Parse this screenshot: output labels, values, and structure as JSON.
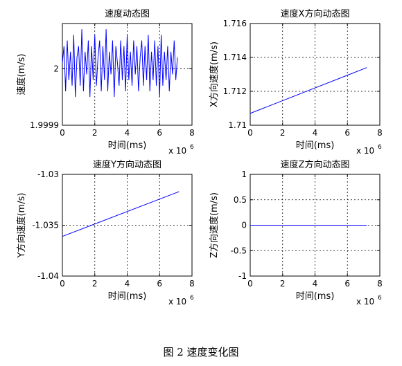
{
  "caption": "图 2 速度变化图",
  "chart_data": [
    {
      "type": "line",
      "title": "速度动态图",
      "xlabel": "时间(ms)",
      "ylabel": "速度(m/s)",
      "x_exponent": "x 10",
      "x_exponent_power": "6",
      "xlim": [
        0,
        8
      ],
      "ylim": [
        1.9999,
        2.00008
      ],
      "xticks": [
        0,
        2,
        4,
        6,
        8
      ],
      "xtick_labels": [
        "0",
        "2",
        "4",
        "6",
        "8"
      ],
      "yticks": [
        1.9999,
        2.0
      ],
      "ytick_labels": [
        "1.9999",
        "2"
      ],
      "grid": true,
      "color": "#0000ff",
      "series": [
        {
          "x": [
            0.0,
            0.1,
            0.2,
            0.3,
            0.4,
            0.5,
            0.6,
            0.7,
            0.8,
            0.9,
            1.0,
            1.1,
            1.2,
            1.3,
            1.4,
            1.5,
            1.6,
            1.7,
            1.8,
            1.9,
            2.0,
            2.1,
            2.2,
            2.3,
            2.4,
            2.5,
            2.6,
            2.7,
            2.8,
            2.9,
            3.0,
            3.1,
            3.2,
            3.3,
            3.4,
            3.5,
            3.6,
            3.7,
            3.8,
            3.9,
            4.0,
            4.1,
            4.2,
            4.3,
            4.4,
            4.5,
            4.6,
            4.7,
            4.8,
            4.9,
            5.0,
            5.1,
            5.2,
            5.3,
            5.4,
            5.5,
            5.6,
            5.7,
            5.8,
            5.9,
            6.0,
            6.1,
            6.2,
            6.3,
            6.4,
            6.5,
            6.6,
            6.7,
            6.8,
            6.9,
            7.0,
            7.1
          ],
          "y": [
            2.00001,
            2.00004,
            1.99996,
            2.00005,
            1.99998,
            2.00003,
            1.99997,
            2.00006,
            1.99995,
            2.00002,
            2.00004,
            1.99997,
            2.00007,
            1.99996,
            2.00003,
            1.99999,
            2.00005,
            1.99995,
            2.00004,
            1.99998,
            2.00006,
            1.99997,
            2.00002,
            2.00005,
            1.99996,
            2.00004,
            1.99998,
            2.00007,
            1.99996,
            2.00003,
            1.99999,
            2.00005,
            1.99995,
            2.00004,
            2.00001,
            1.99997,
            2.00005,
            1.99998,
            2.00004,
            1.99996,
            2.00006,
            1.99998,
            2.00003,
            1.99997,
            2.00005,
            1.99999,
            2.00004,
            1.99996,
            2.00002,
            2.00005,
            1.99997,
            2.00004,
            1.99998,
            2.00006,
            1.99996,
            2.00003,
            1.99998,
            2.00005,
            1.99997,
            2.00004,
            1.99995,
            2.00006,
            1.99997,
            2.00003,
            1.99998,
            2.00004,
            1.99996,
            2.00003,
            1.99999,
            2.00005,
            1.99998,
            2.00002
          ]
        }
      ]
    },
    {
      "type": "line",
      "title": "速度X方向动态图",
      "xlabel": "时间(ms)",
      "ylabel": "X方向速度(m/s)",
      "x_exponent": "x 10",
      "x_exponent_power": "6",
      "xlim": [
        0,
        8
      ],
      "ylim": [
        1.71,
        1.716
      ],
      "xticks": [
        0,
        2,
        4,
        6,
        8
      ],
      "xtick_labels": [
        "0",
        "2",
        "4",
        "6",
        "8"
      ],
      "yticks": [
        1.71,
        1.712,
        1.714,
        1.716
      ],
      "ytick_labels": [
        "1.71",
        "1.712",
        "1.714",
        "1.716"
      ],
      "grid": true,
      "color": "#0000ff",
      "series": [
        {
          "x": [
            0,
            7.2
          ],
          "y": [
            1.7107,
            1.7134
          ]
        }
      ]
    },
    {
      "type": "line",
      "title": "速度Y方向动态图",
      "xlabel": "时间(ms)",
      "ylabel": "Y方向速度(m/s)",
      "x_exponent": "x 10",
      "x_exponent_power": "6",
      "xlim": [
        0,
        8
      ],
      "ylim": [
        -1.04,
        -1.03
      ],
      "xticks": [
        0,
        2,
        4,
        6,
        8
      ],
      "xtick_labels": [
        "0",
        "2",
        "4",
        "6",
        "8"
      ],
      "yticks": [
        -1.04,
        -1.035,
        -1.03
      ],
      "ytick_labels": [
        "-1.04",
        "-1.035",
        "-1.03"
      ],
      "grid": true,
      "color": "#0000ff",
      "series": [
        {
          "x": [
            0,
            7.2
          ],
          "y": [
            -1.0361,
            -1.0317
          ]
        }
      ]
    },
    {
      "type": "line",
      "title": "速度Z方向动态图",
      "xlabel": "时间(ms)",
      "ylabel": "Z方向速度(m/s)",
      "x_exponent": "x 10",
      "x_exponent_power": "6",
      "xlim": [
        0,
        8
      ],
      "ylim": [
        -1,
        1
      ],
      "xticks": [
        0,
        2,
        4,
        6,
        8
      ],
      "xtick_labels": [
        "0",
        "2",
        "4",
        "6",
        "8"
      ],
      "yticks": [
        -1,
        -0.5,
        0,
        0.5,
        1
      ],
      "ytick_labels": [
        "-1",
        "-0.5",
        "0",
        "0.5",
        "1"
      ],
      "grid": true,
      "color": "#0000ff",
      "series": [
        {
          "x": [
            0,
            7.2
          ],
          "y": [
            0,
            0
          ]
        }
      ]
    }
  ]
}
